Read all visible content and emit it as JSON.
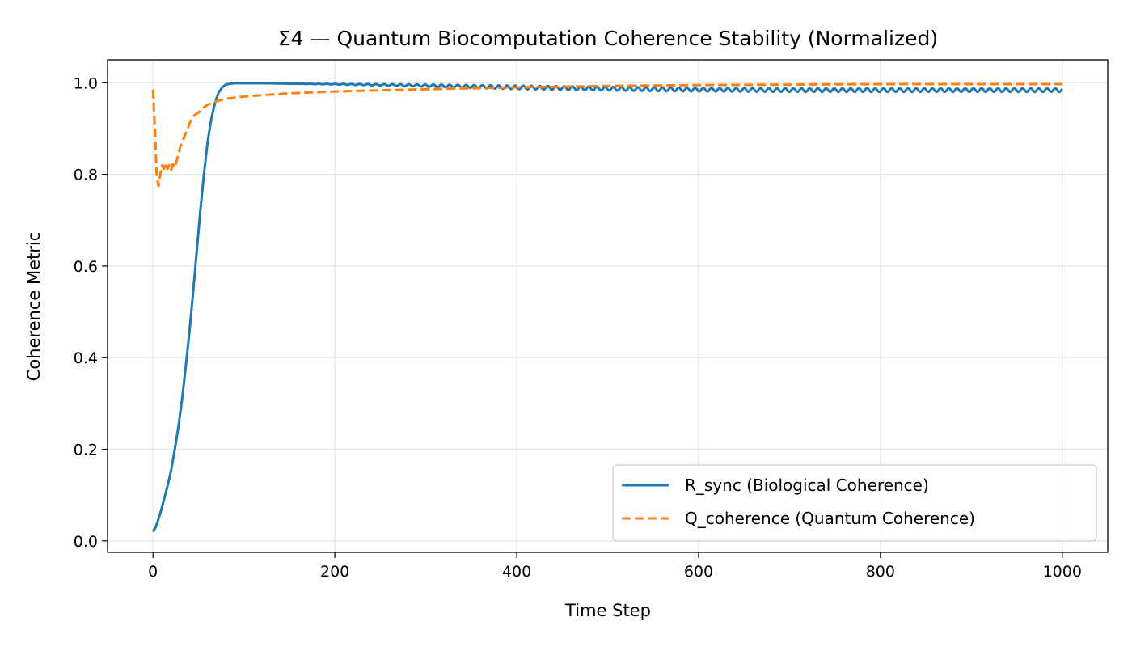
{
  "chart_data": {
    "type": "line",
    "title": "Σ4 — Quantum Biocomputation Coherence Stability (Normalized)",
    "xlabel": "Time Step",
    "ylabel": "Coherence Metric",
    "xlim": [
      -50,
      1050
    ],
    "ylim": [
      -0.025,
      1.05
    ],
    "xticks": [
      0,
      200,
      400,
      600,
      800,
      1000
    ],
    "xtick_labels": [
      "0",
      "200",
      "400",
      "600",
      "800",
      "1000"
    ],
    "yticks": [
      0.0,
      0.2,
      0.4,
      0.6,
      0.8,
      1.0
    ],
    "ytick_labels": [
      "0.0",
      "0.2",
      "0.4",
      "0.6",
      "0.8",
      "1.0"
    ],
    "grid": true,
    "legend_position": "lower-right",
    "series": [
      {
        "name": "R_sync (Biological Coherence)",
        "color": "#1f77b4",
        "style": "solid",
        "x": [
          0,
          3,
          8,
          12,
          16,
          20,
          24,
          28,
          32,
          36,
          40,
          44,
          48,
          52,
          56,
          60,
          64,
          68,
          72,
          76,
          80,
          85,
          90,
          100,
          120,
          150,
          200,
          300,
          400,
          500,
          600,
          700,
          800,
          900,
          1000
        ],
        "y": [
          0.02,
          0.03,
          0.06,
          0.09,
          0.12,
          0.155,
          0.2,
          0.25,
          0.31,
          0.38,
          0.455,
          0.54,
          0.63,
          0.72,
          0.8,
          0.87,
          0.92,
          0.955,
          0.978,
          0.99,
          0.996,
          0.998,
          0.999,
          0.999,
          0.999,
          0.998,
          0.997,
          0.994,
          0.99,
          0.987,
          0.985,
          0.984,
          0.984,
          0.984,
          0.984
        ],
        "oscillation_amplitude": 0.004
      },
      {
        "name": "Q_coherence (Quantum Coherence)",
        "color": "#ff7f0e",
        "style": "dashed",
        "x": [
          0,
          2,
          4,
          6,
          8,
          10,
          12,
          14,
          16,
          18,
          20,
          22,
          24,
          26,
          28,
          30,
          34,
          38,
          42,
          46,
          50,
          55,
          60,
          70,
          80,
          100,
          150,
          200,
          300,
          400,
          500,
          600,
          700,
          800,
          900,
          1000
        ],
        "y": [
          0.985,
          0.9,
          0.8,
          0.775,
          0.8,
          0.82,
          0.812,
          0.825,
          0.812,
          0.82,
          0.81,
          0.822,
          0.815,
          0.83,
          0.845,
          0.86,
          0.88,
          0.9,
          0.92,
          0.93,
          0.935,
          0.945,
          0.952,
          0.96,
          0.965,
          0.97,
          0.977,
          0.981,
          0.986,
          0.99,
          0.993,
          0.995,
          0.996,
          0.997,
          0.997,
          0.997
        ]
      }
    ]
  }
}
